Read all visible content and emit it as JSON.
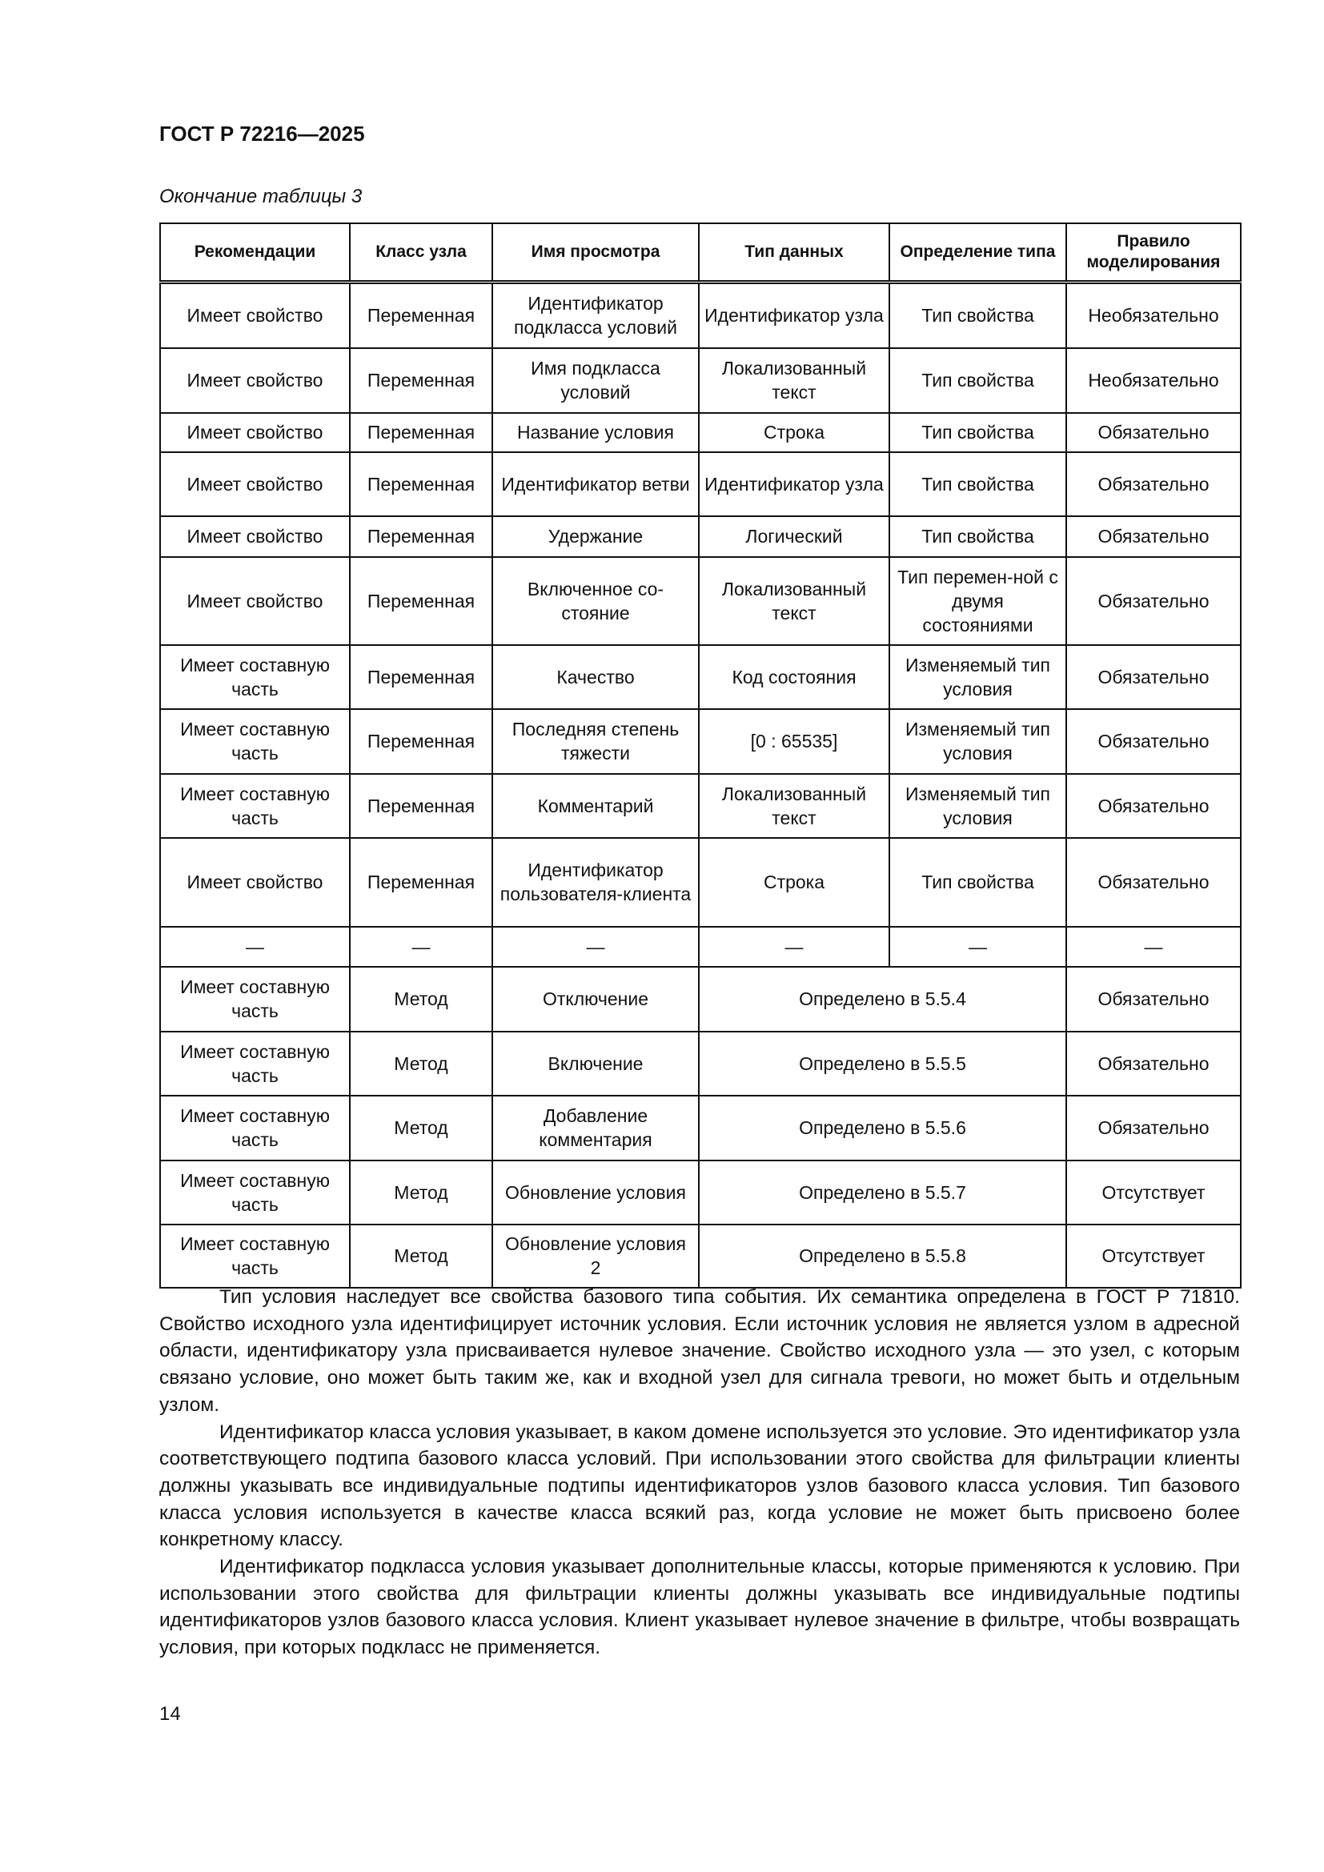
{
  "header": {
    "doc_id": "ГОСТ Р 72216—2025"
  },
  "caption": "Окончание таблицы 3",
  "table": {
    "columns": [
      "Рекомендации",
      "Класс узла",
      "Имя просмотра",
      "Тип данных",
      "Определение типа",
      "Правило моделирования"
    ],
    "rows": [
      {
        "h": 82,
        "cells": [
          "Имеет свойство",
          "Переменная",
          "Идентификатор подкласса условий",
          "Идентификатор узла",
          "Тип свойства",
          "Необязательно"
        ]
      },
      {
        "h": 81,
        "cells": [
          "Имеет свойство",
          "Переменная",
          "Имя подкласса условий",
          "Локализованный текст",
          "Тип свойства",
          "Необязательно"
        ]
      },
      {
        "h": 49,
        "cells": [
          "Имеет свойство",
          "Переменная",
          "Название условия",
          "Строка",
          "Тип свойства",
          "Обязательно"
        ]
      },
      {
        "h": 80,
        "cells": [
          "Имеет свойство",
          "Переменная",
          "Идентификатор ветви",
          "Идентификатор узла",
          "Тип свойства",
          "Обязательно"
        ]
      },
      {
        "h": 51,
        "cells": [
          "Имеет свойство",
          "Переменная",
          "Удержание",
          "Логический",
          "Тип свойства",
          "Обязательно"
        ]
      },
      {
        "h": 110,
        "cells": [
          "Имеет свойство",
          "Переменная",
          "Включенное со-стояние",
          "Локализованный текст",
          "Тип перемен-ной с двумя состояниями",
          "Обязательно"
        ]
      },
      {
        "h": 80,
        "cells": [
          "Имеет составную часть",
          "Переменная",
          "Качество",
          "Код состояния",
          "Изменяемый тип условия",
          "Обязательно"
        ]
      },
      {
        "h": 81,
        "cells": [
          "Имеет составную часть",
          "Переменная",
          "Последняя степень тяжести",
          "[0 : 65535]",
          "Изменяемый тип условия",
          "Обязательно"
        ]
      },
      {
        "h": 80,
        "cells": [
          "Имеет составную часть",
          "Переменная",
          "Комментарий",
          "Локализованный текст",
          "Изменяемый тип условия",
          "Обязательно"
        ]
      },
      {
        "h": 111,
        "cells": [
          "Имеет свойство",
          "Переменная",
          "Идентификатор пользователя-клиента",
          "Строка",
          "Тип свойства",
          "Обязательно"
        ]
      },
      {
        "h": 50,
        "cells": [
          "—",
          "—",
          "—",
          "—",
          "—",
          "—"
        ]
      },
      {
        "h": 81,
        "span": true,
        "cells": [
          "Имеет составную часть",
          "Метод",
          "Отключение",
          "Определено в 5.5.4",
          "Обязательно"
        ]
      },
      {
        "h": 80,
        "span": true,
        "cells": [
          "Имеет составную часть",
          "Метод",
          "Включение",
          "Определено в 5.5.5",
          "Обязательно"
        ]
      },
      {
        "h": 81,
        "span": true,
        "cells": [
          "Имеет составную часть",
          "Метод",
          "Добавление комментария",
          "Определено в 5.5.6",
          "Обязательно"
        ]
      },
      {
        "h": 80,
        "span": true,
        "cells": [
          "Имеет составную часть",
          "Метод",
          "Обновление условия",
          "Определено в 5.5.7",
          "Отсутствует"
        ]
      },
      {
        "h": 79,
        "span": true,
        "cells": [
          "Имеет составную часть",
          "Метод",
          "Обновление условия 2",
          "Определено в 5.5.8",
          "Отсутствует"
        ]
      }
    ]
  },
  "paragraphs": [
    "Тип условия наследует все свойства базового типа события. Их семантика определена в ГОСТ Р 71810. Свойство исходного узла идентифицирует источник условия. Если источник условия не является узлом в адресной области, идентификатору узла присваивается нулевое значение. Свойство исходного узла — это узел, с которым связано условие, оно может быть таким же, как и входной узел для сигнала тревоги, но может быть и отдельным узлом.",
    "Идентификатор класса условия указывает, в каком домене используется это условие. Это идентификатор узла соответствующего подтипа базового класса условий. При использовании этого свойства для фильтрации клиенты должны указывать все индивидуальные подтипы идентификаторов узлов базового класса условия. Тип базового класса условия используется в качестве класса всякий раз, когда условие не может быть присвоено более конкретному классу.",
    "Идентификатор подкласса условия указывает дополнительные классы, которые применяются к условию. При использовании этого свойства для фильтрации клиенты должны указывать все индивидуальные подтипы идентификаторов узлов базового класса условия. Клиент указывает нулевое значение в фильтре, чтобы возвращать условия, при которых подкласс не применяется."
  ],
  "page_number": "14"
}
